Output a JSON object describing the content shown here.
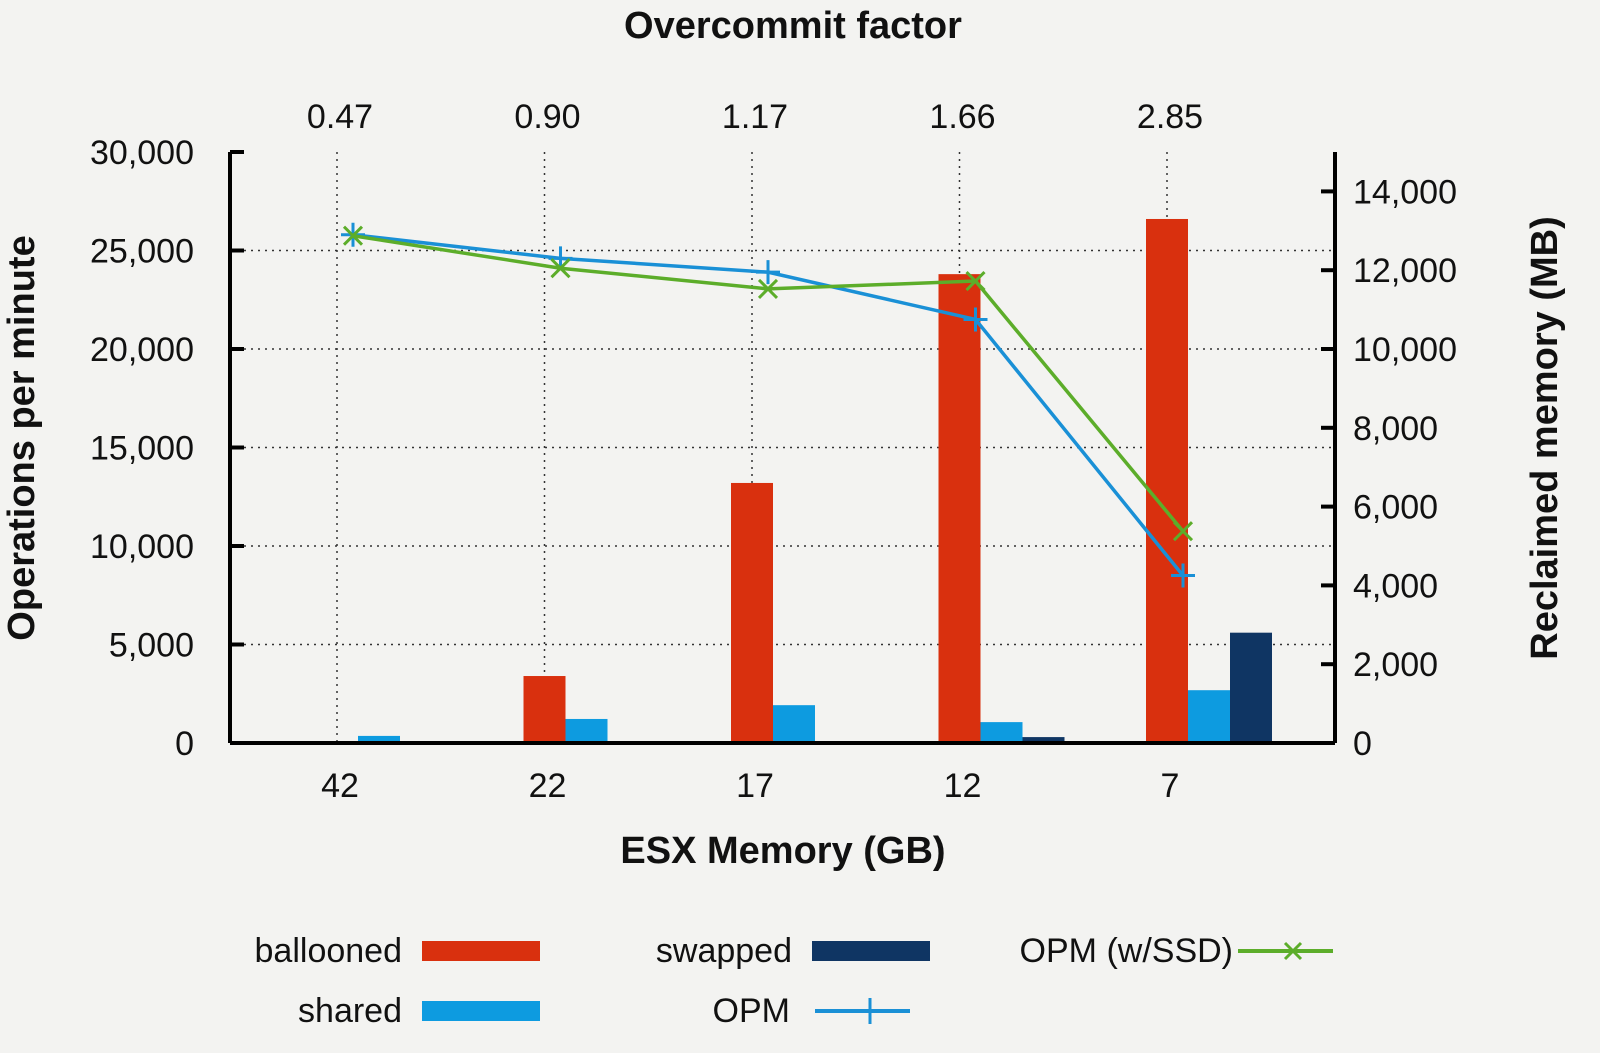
{
  "chart_data": {
    "type": "bar+line",
    "title": "Overcommit factor",
    "xlabel": "ESX Memory (GB)",
    "ylabel_left": "Operations per minute",
    "ylabel_right": "Reclaimed memory (MB)",
    "categories": [
      "42",
      "22",
      "17",
      "12",
      "7"
    ],
    "top_categories": [
      "0.47",
      "0.90",
      "1.17",
      "1.66",
      "2.85"
    ],
    "ylim_left": [
      0,
      30000
    ],
    "yticks_left": [
      "0",
      "5,000",
      "10,000",
      "15,000",
      "20,000",
      "25,000",
      "30,000"
    ],
    "ylim_right": [
      0,
      15000
    ],
    "yticks_right": [
      "0",
      "2,000",
      "4,000",
      "6,000",
      "8,000",
      "10,000",
      "12,000",
      "14,000"
    ],
    "grid": true,
    "legend_placement": "bottom",
    "bar_series": [
      {
        "name": "ballooned",
        "axis": "right",
        "color": "#d9300e",
        "values": [
          0,
          1700,
          6600,
          11900,
          13300
        ]
      },
      {
        "name": "shared",
        "axis": "right",
        "color": "#0d9be0",
        "values": [
          180,
          610,
          960,
          530,
          1340
        ]
      },
      {
        "name": "swapped",
        "axis": "right",
        "color": "#0f3563",
        "values": [
          0,
          0,
          0,
          150,
          2800
        ]
      }
    ],
    "line_series": [
      {
        "name": "OPM",
        "axis": "left",
        "color": "#1a90d6",
        "marker": "plus",
        "values": [
          25800,
          24600,
          23900,
          21500,
          8500
        ]
      },
      {
        "name": "OPM (w/SSD)",
        "axis": "left",
        "color": "#5cad2a",
        "marker": "x",
        "values": [
          25750,
          24100,
          23050,
          23450,
          10750
        ]
      }
    ]
  }
}
